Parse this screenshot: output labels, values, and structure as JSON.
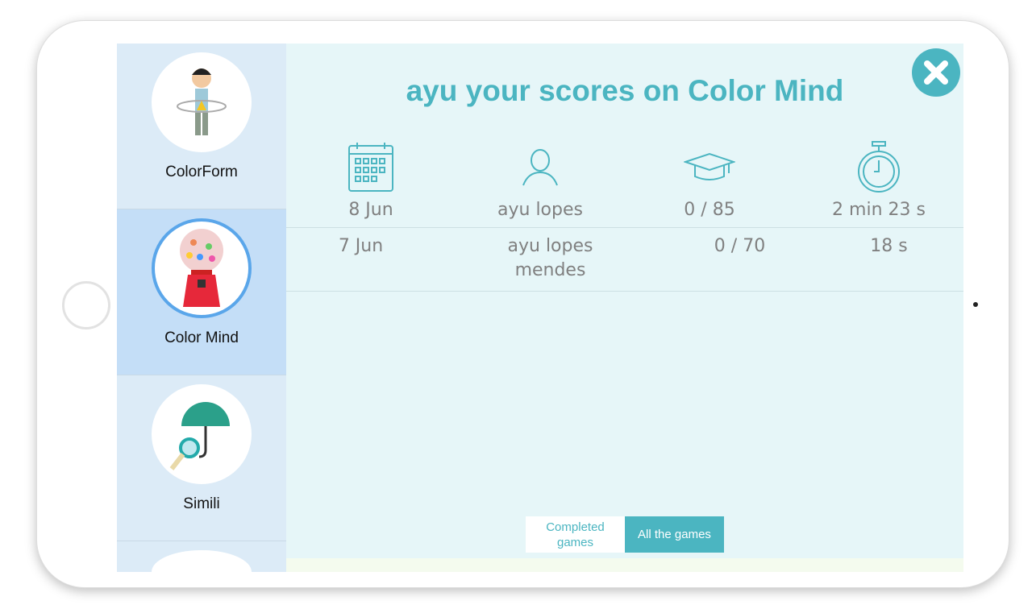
{
  "sidebar": {
    "items": [
      {
        "label": "ColorForm",
        "icon": "boy-hula-hoop-icon"
      },
      {
        "label": "Color Mind",
        "icon": "gumball-machine-icon",
        "selected": true
      },
      {
        "label": "Simili",
        "icon": "umbrella-magnifier-icon"
      }
    ]
  },
  "main": {
    "title": "ayu your scores on Color Mind",
    "columns": [
      {
        "icon": "calendar-icon"
      },
      {
        "icon": "user-icon"
      },
      {
        "icon": "graduation-cap-icon"
      },
      {
        "icon": "stopwatch-icon"
      }
    ],
    "rows": [
      [
        "8 Jun",
        "ayu lopes",
        "0 / 85",
        "2 min 23 s"
      ],
      [
        "7 Jun",
        "ayu lopes mendes",
        "0 / 70",
        "18 s"
      ]
    ],
    "filters": {
      "completed": "Completed games",
      "all": "All the games",
      "active": "all"
    }
  },
  "colors": {
    "accent": "#4bb5c1",
    "selected": "#c4def7",
    "background": "#e6f6f8"
  }
}
